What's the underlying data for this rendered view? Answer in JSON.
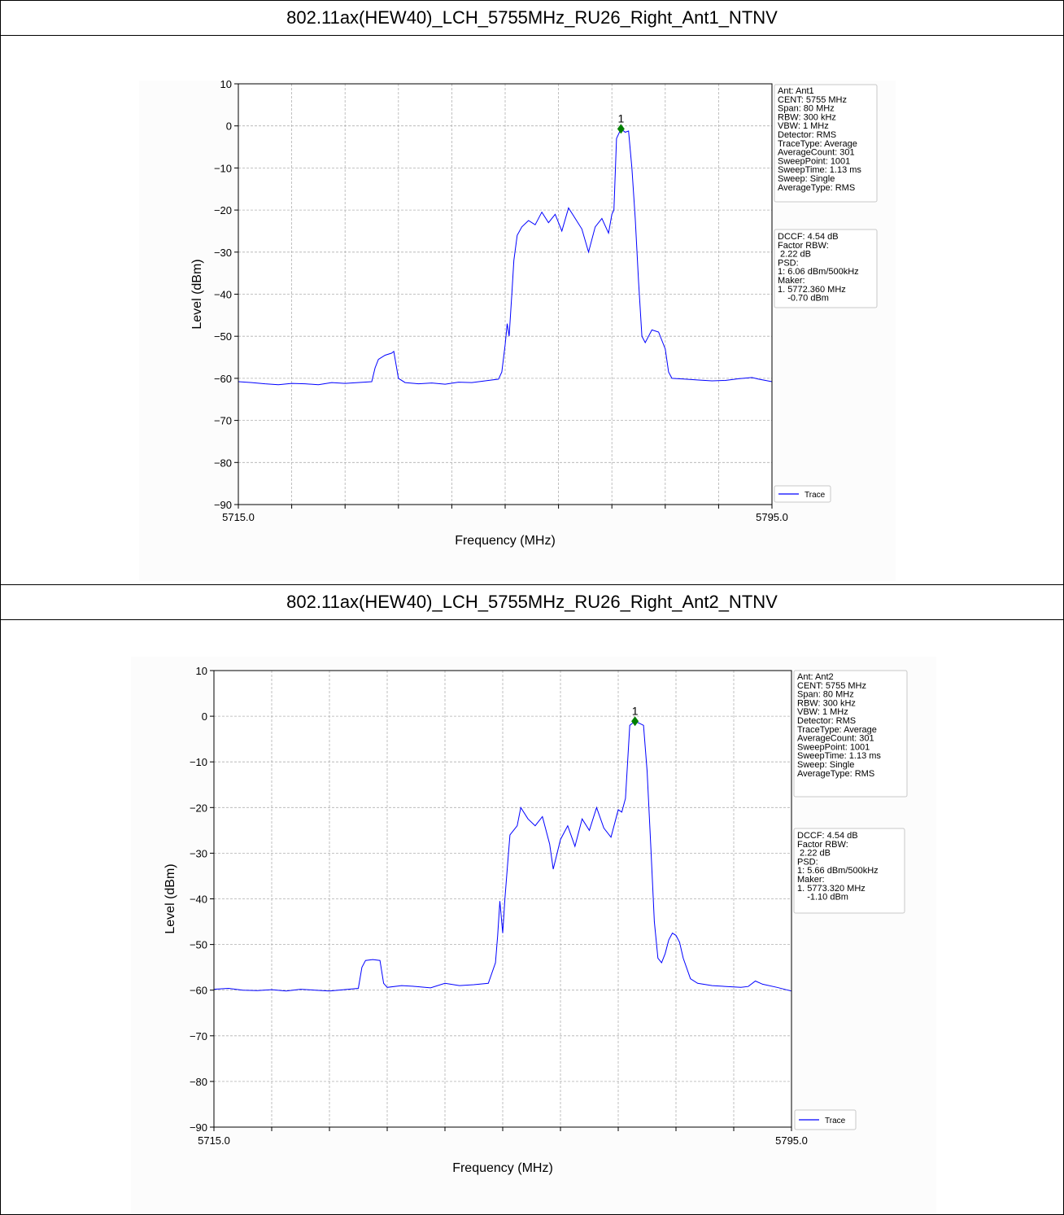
{
  "panels": [
    {
      "title": "802.11ax(HEW40)_LCH_5755MHz_RU26_Right_Ant1_NTNV",
      "chart_data": {
        "type": "line",
        "xlabel": "Frequency (MHz)",
        "ylabel": "Level (dBm)",
        "xlim": [
          5715.0,
          5795.0
        ],
        "ylim": [
          -90,
          10
        ],
        "x_tick_labels": [
          "5715.0",
          "5795.0"
        ],
        "y_ticks": [
          10,
          0,
          -10,
          -20,
          -30,
          -40,
          -50,
          -60,
          -70,
          -80,
          -90
        ],
        "grid": true,
        "legend": "bottom-right outside",
        "series": [
          {
            "name": "Trace",
            "color": "#0000ff",
            "points": [
              [
                5715.0,
                -60.8
              ],
              [
                5717.0,
                -61.0
              ],
              [
                5719.0,
                -61.3
              ],
              [
                5721.0,
                -61.5
              ],
              [
                5723.0,
                -61.2
              ],
              [
                5725.0,
                -61.3
              ],
              [
                5727.0,
                -61.5
              ],
              [
                5729.0,
                -61.0
              ],
              [
                5731.0,
                -61.2
              ],
              [
                5735.0,
                -60.8
              ],
              [
                5735.5,
                -57.5
              ],
              [
                5736.0,
                -55.5
              ],
              [
                5737.0,
                -54.5
              ],
              [
                5738.0,
                -54.0
              ],
              [
                5738.3,
                -53.6
              ],
              [
                5739.0,
                -60.0
              ],
              [
                5740.0,
                -61.0
              ],
              [
                5742.0,
                -61.3
              ],
              [
                5744.0,
                -61.1
              ],
              [
                5746.0,
                -61.4
              ],
              [
                5748.0,
                -60.9
              ],
              [
                5750.0,
                -61.0
              ],
              [
                5752.0,
                -60.6
              ],
              [
                5754.0,
                -60.2
              ],
              [
                5754.5,
                -58.5
              ],
              [
                5755.0,
                -52.0
              ],
              [
                5755.3,
                -47.0
              ],
              [
                5755.6,
                -50.0
              ],
              [
                5756.0,
                -40.0
              ],
              [
                5756.3,
                -32.0
              ],
              [
                5756.8,
                -26.0
              ],
              [
                5757.5,
                -24.0
              ],
              [
                5758.5,
                -22.5
              ],
              [
                5759.5,
                -23.5
              ],
              [
                5760.5,
                -20.5
              ],
              [
                5761.5,
                -23.0
              ],
              [
                5762.5,
                -21.0
              ],
              [
                5763.5,
                -25.0
              ],
              [
                5764.5,
                -19.5
              ],
              [
                5765.5,
                -22.0
              ],
              [
                5766.5,
                -24.5
              ],
              [
                5767.5,
                -30.0
              ],
              [
                5768.5,
                -24.0
              ],
              [
                5769.5,
                -22.0
              ],
              [
                5770.5,
                -25.5
              ],
              [
                5771.0,
                -21.0
              ],
              [
                5771.3,
                -20.0
              ],
              [
                5771.7,
                -3.0
              ],
              [
                5772.36,
                -0.7
              ],
              [
                5773.0,
                -1.5
              ],
              [
                5773.5,
                -1.2
              ],
              [
                5774.0,
                -10.0
              ],
              [
                5774.5,
                -22.0
              ],
              [
                5775.0,
                -37.0
              ],
              [
                5775.5,
                -50.0
              ],
              [
                5776.0,
                -51.5
              ],
              [
                5776.5,
                -50.0
              ],
              [
                5777.0,
                -48.5
              ],
              [
                5778.0,
                -49.0
              ],
              [
                5779.0,
                -53.0
              ],
              [
                5779.5,
                -58.5
              ],
              [
                5780.0,
                -60.0
              ],
              [
                5782.0,
                -60.2
              ],
              [
                5784.0,
                -60.4
              ],
              [
                5786.0,
                -60.6
              ],
              [
                5788.0,
                -60.5
              ],
              [
                5790.0,
                -60.1
              ],
              [
                5792.0,
                -59.8
              ],
              [
                5793.0,
                -60.2
              ],
              [
                5795.0,
                -60.8
              ]
            ]
          }
        ],
        "marker": {
          "label": "1",
          "x": 5772.36,
          "y": -0.7,
          "color": "#008000"
        },
        "info_box": [
          "Ant: Ant1",
          "CENT: 5755 MHz",
          "Span: 80 MHz",
          "RBW: 300 kHz",
          "VBW: 1 MHz",
          "Detector: RMS",
          "TraceType: Average",
          "AverageCount: 301",
          "SweepPoint: 1001",
          "SweepTime: 1.13 ms",
          "Sweep: Single",
          "AverageType: RMS"
        ],
        "result_box": [
          "DCCF: 4.54 dB",
          "Factor RBW:",
          " 2.22 dB",
          "PSD:",
          "1: 6.06 dBm/500kHz",
          "Maker:",
          "1. 5772.360 MHz",
          "    -0.70 dBm"
        ],
        "legend_label": "Trace"
      }
    },
    {
      "title": "802.11ax(HEW40)_LCH_5755MHz_RU26_Right_Ant2_NTNV",
      "chart_data": {
        "type": "line",
        "xlabel": "Frequency (MHz)",
        "ylabel": "Level (dBm)",
        "xlim": [
          5715.0,
          5795.0
        ],
        "ylim": [
          -90,
          10
        ],
        "x_tick_labels": [
          "5715.0",
          "5795.0"
        ],
        "y_ticks": [
          10,
          0,
          -10,
          -20,
          -30,
          -40,
          -50,
          -60,
          -70,
          -80,
          -90
        ],
        "grid": true,
        "legend": "bottom-right outside",
        "series": [
          {
            "name": "Trace",
            "color": "#0000ff",
            "points": [
              [
                5715.0,
                -59.8
              ],
              [
                5717.0,
                -59.6
              ],
              [
                5719.0,
                -60.0
              ],
              [
                5721.0,
                -60.1
              ],
              [
                5723.0,
                -59.9
              ],
              [
                5725.0,
                -60.2
              ],
              [
                5727.0,
                -59.8
              ],
              [
                5729.0,
                -60.0
              ],
              [
                5731.0,
                -60.2
              ],
              [
                5735.0,
                -59.6
              ],
              [
                5735.5,
                -55.0
              ],
              [
                5736.0,
                -53.5
              ],
              [
                5737.0,
                -53.3
              ],
              [
                5738.0,
                -53.5
              ],
              [
                5738.5,
                -58.5
              ],
              [
                5739.0,
                -59.4
              ],
              [
                5741.0,
                -59.0
              ],
              [
                5743.0,
                -59.2
              ],
              [
                5745.0,
                -59.5
              ],
              [
                5747.0,
                -58.5
              ],
              [
                5749.0,
                -59.0
              ],
              [
                5751.0,
                -58.8
              ],
              [
                5753.0,
                -58.5
              ],
              [
                5754.0,
                -54.0
              ],
              [
                5754.3,
                -48.0
              ],
              [
                5754.6,
                -40.5
              ],
              [
                5755.0,
                -47.5
              ],
              [
                5755.3,
                -40.0
              ],
              [
                5755.7,
                -32.0
              ],
              [
                5756.0,
                -26.0
              ],
              [
                5757.0,
                -24.0
              ],
              [
                5757.5,
                -20.0
              ],
              [
                5758.5,
                -22.5
              ],
              [
                5759.5,
                -24.0
              ],
              [
                5760.5,
                -22.0
              ],
              [
                5761.5,
                -28.0
              ],
              [
                5762.0,
                -33.5
              ],
              [
                5763.0,
                -27.0
              ],
              [
                5764.0,
                -24.0
              ],
              [
                5765.0,
                -28.5
              ],
              [
                5766.0,
                -22.5
              ],
              [
                5767.0,
                -25.0
              ],
              [
                5768.0,
                -20.0
              ],
              [
                5769.0,
                -24.5
              ],
              [
                5770.0,
                -26.5
              ],
              [
                5771.0,
                -20.5
              ],
              [
                5771.5,
                -21.0
              ],
              [
                5772.0,
                -18.0
              ],
              [
                5772.6,
                -2.0
              ],
              [
                5773.32,
                -1.1
              ],
              [
                5774.0,
                -1.6
              ],
              [
                5774.5,
                -2.0
              ],
              [
                5775.0,
                -12.0
              ],
              [
                5775.5,
                -28.0
              ],
              [
                5776.0,
                -45.0
              ],
              [
                5776.5,
                -53.0
              ],
              [
                5777.0,
                -54.0
              ],
              [
                5777.5,
                -52.0
              ],
              [
                5778.0,
                -49.0
              ],
              [
                5778.5,
                -47.5
              ],
              [
                5779.0,
                -48.0
              ],
              [
                5779.5,
                -49.5
              ],
              [
                5780.0,
                -53.0
              ],
              [
                5781.0,
                -57.5
              ],
              [
                5782.0,
                -58.5
              ],
              [
                5784.0,
                -59.0
              ],
              [
                5786.0,
                -59.2
              ],
              [
                5788.0,
                -59.4
              ],
              [
                5789.0,
                -59.2
              ],
              [
                5790.0,
                -58.0
              ],
              [
                5791.0,
                -58.7
              ],
              [
                5793.0,
                -59.4
              ],
              [
                5795.0,
                -60.2
              ]
            ]
          }
        ],
        "marker": {
          "label": "1",
          "x": 5773.32,
          "y": -1.1,
          "color": "#008000"
        },
        "info_box": [
          "Ant: Ant2",
          "CENT: 5755 MHz",
          "Span: 80 MHz",
          "RBW: 300 kHz",
          "VBW: 1 MHz",
          "Detector: RMS",
          "TraceType: Average",
          "AverageCount: 301",
          "SweepPoint: 1001",
          "SweepTime: 1.13 ms",
          "Sweep: Single",
          "AverageType: RMS"
        ],
        "result_box": [
          "DCCF: 4.54 dB",
          "Factor RBW:",
          " 2.22 dB",
          "PSD:",
          "1: 5.66 dBm/500kHz",
          "Maker:",
          "1. 5773.320 MHz",
          "    -1.10 dBm"
        ],
        "legend_label": "Trace"
      }
    }
  ]
}
